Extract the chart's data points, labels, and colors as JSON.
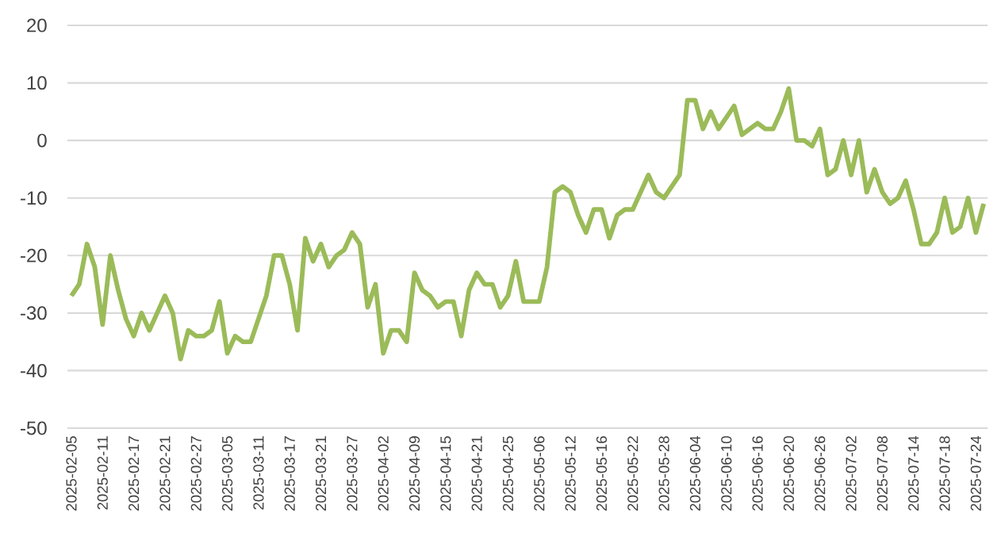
{
  "chart_data": {
    "type": "line",
    "categories": [
      "2025-02-05",
      null,
      null,
      null,
      "2025-02-11",
      null,
      null,
      null,
      "2025-02-17",
      null,
      null,
      null,
      "2025-02-21",
      null,
      null,
      null,
      "2025-02-27",
      null,
      null,
      null,
      "2025-03-05",
      null,
      null,
      null,
      "2025-03-11",
      null,
      null,
      null,
      "2025-03-17",
      null,
      null,
      null,
      "2025-03-21",
      null,
      null,
      null,
      "2025-03-27",
      null,
      null,
      null,
      "2025-04-02",
      null,
      null,
      null,
      "2025-04-09",
      null,
      null,
      null,
      "2025-04-15",
      null,
      null,
      null,
      "2025-04-21",
      null,
      null,
      null,
      "2025-04-25",
      null,
      null,
      null,
      "2025-05-06",
      null,
      null,
      null,
      "2025-05-12",
      null,
      null,
      null,
      "2025-05-16",
      null,
      null,
      null,
      "2025-05-22",
      null,
      null,
      null,
      "2025-05-28",
      null,
      null,
      null,
      "2025-06-04",
      null,
      null,
      null,
      "2025-06-10",
      null,
      null,
      null,
      "2025-06-16",
      null,
      null,
      null,
      "2025-06-20",
      null,
      null,
      null,
      "2025-06-26",
      null,
      null,
      null,
      "2025-07-02",
      null,
      null,
      null,
      "2025-07-08",
      null,
      null,
      null,
      "2025-07-14",
      null,
      null,
      null,
      "2025-07-18",
      null,
      null,
      null,
      "2025-07-24",
      null
    ],
    "series": [
      {
        "color": "#9bbb59",
        "values": [
          -27,
          -25,
          -18,
          -22,
          -32,
          -20,
          -26,
          -31,
          -34,
          -30,
          -33,
          -30,
          -27,
          -30,
          -38,
          -33,
          -34,
          -34,
          -33,
          -28,
          -37,
          -34,
          -35,
          -35,
          -31,
          -27,
          -20,
          -20,
          -25,
          -33,
          -17,
          -21,
          -18,
          -22,
          -20,
          -19,
          -16,
          -18,
          -29,
          -25,
          -37,
          -33,
          -33,
          -35,
          -23,
          -26,
          -27,
          -29,
          -28,
          -28,
          -34,
          -26,
          -23,
          -25,
          -25,
          -29,
          -27,
          -21,
          -28,
          -28,
          -28,
          -22,
          -9,
          -8,
          -9,
          -13,
          -16,
          -12,
          -12,
          -17,
          -13,
          -12,
          -12,
          -9,
          -6,
          -9,
          -10,
          -8,
          -6,
          7,
          7,
          2,
          5,
          2,
          4,
          6,
          1,
          2,
          3,
          2,
          2,
          5,
          9,
          0,
          0,
          -1,
          2,
          -6,
          -5,
          0,
          -6,
          0,
          -9,
          -5,
          -9,
          -11,
          -10,
          -7,
          -12,
          -18,
          -18,
          -16,
          -10,
          -16,
          -15,
          -10,
          -16,
          -11
        ]
      }
    ],
    "ylim": [
      -50,
      20
    ],
    "yticks": [
      -50,
      -40,
      -30,
      -20,
      -10,
      0,
      10,
      20
    ],
    "grid": "y",
    "marker": "none",
    "line_style": "solid"
  }
}
